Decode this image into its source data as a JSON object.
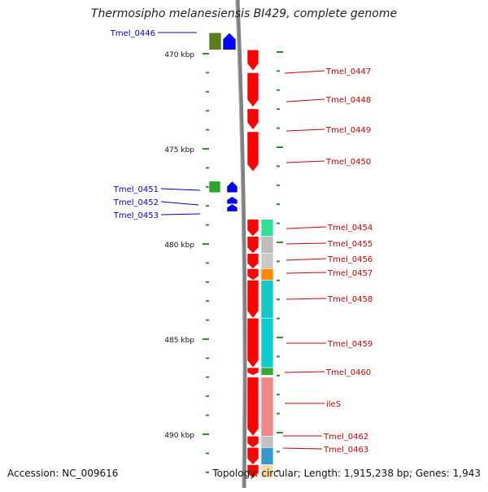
{
  "title": "Thermosipho melanesiensis BI429, complete genome",
  "footer": {
    "accession": "Accession: NC_009616",
    "topology": "Topology: circular; Length: 1,915,238 bp; Genes: 1,943"
  },
  "colors": {
    "forward_gene": "#0000ff",
    "reverse_gene": "#ff0000",
    "forward_label": "#0000cc",
    "reverse_label": "#cc0000",
    "tick": "#2f8f2f",
    "backbone": "#808080"
  },
  "ruler": {
    "start_kbp": 469.3,
    "end_kbp": 492.0,
    "labels": [
      "470 kbp",
      "475 kbp",
      "480 kbp",
      "485 kbp",
      "490 kbp"
    ]
  },
  "genes": [
    {
      "name": "Tmel_0446",
      "strand": "+",
      "start_kbp": 468.9,
      "end_kbp": 469.8,
      "cog_color": "#5a7f1a"
    },
    {
      "name": "Tmel_0447",
      "strand": "-",
      "start_kbp": 469.8,
      "end_kbp": 470.9,
      "cog_color": null
    },
    {
      "name": "Tmel_0448",
      "strand": "-",
      "start_kbp": 471.0,
      "end_kbp": 472.8,
      "cog_color": null
    },
    {
      "name": "Tmel_0449",
      "strand": "-",
      "start_kbp": 472.9,
      "end_kbp": 474.0,
      "cog_color": null
    },
    {
      "name": "Tmel_0450",
      "strand": "-",
      "start_kbp": 474.1,
      "end_kbp": 476.2,
      "cog_color": null
    },
    {
      "name": "Tmel_0451",
      "strand": "+",
      "start_kbp": 476.7,
      "end_kbp": 477.3,
      "cog_color": "#2aa52a"
    },
    {
      "name": "Tmel_0452",
      "strand": "+",
      "start_kbp": 477.5,
      "end_kbp": 477.9,
      "cog_color": null
    },
    {
      "name": "Tmel_0453",
      "strand": "+",
      "start_kbp": 477.9,
      "end_kbp": 478.3,
      "cog_color": null
    },
    {
      "name": "Tmel_0454",
      "strand": "-",
      "start_kbp": 478.7,
      "end_kbp": 479.6,
      "cog_color": "#33dd99"
    },
    {
      "name": "Tmel_0455",
      "strand": "-",
      "start_kbp": 479.6,
      "end_kbp": 480.5,
      "cog_color": "#bdbdbd"
    },
    {
      "name": "Tmel_0456",
      "strand": "-",
      "start_kbp": 480.5,
      "end_kbp": 481.3,
      "cog_color": "#c9c9c9"
    },
    {
      "name": "Tmel_0457",
      "strand": "-",
      "start_kbp": 481.3,
      "end_kbp": 481.9,
      "cog_color": "#ff8800"
    },
    {
      "name": "Tmel_0458",
      "strand": "-",
      "start_kbp": 481.9,
      "end_kbp": 483.9,
      "cog_color": "#14c8c8"
    },
    {
      "name": "Tmel_0459",
      "strand": "-",
      "start_kbp": 483.9,
      "end_kbp": 486.5,
      "cog_color": "#10cccc"
    },
    {
      "name": "Tmel_0460",
      "strand": "-",
      "start_kbp": 486.5,
      "end_kbp": 486.9,
      "cog_color": "#33aa33"
    },
    {
      "name": "ileS",
      "strand": "-",
      "start_kbp": 487.0,
      "end_kbp": 490.1,
      "cog_color": "#f08888"
    },
    {
      "name": "Tmel_0462",
      "strand": "-",
      "start_kbp": 490.1,
      "end_kbp": 490.7,
      "cog_color": "#c0c0c0"
    },
    {
      "name": "Tmel_0463",
      "strand": "-",
      "start_kbp": 490.7,
      "end_kbp": 491.6,
      "cog_color": "#3399cc"
    },
    {
      "name": "",
      "strand": "-",
      "start_kbp": 491.6,
      "end_kbp": 492.3,
      "cog_color": "#f3d9a0"
    }
  ]
}
